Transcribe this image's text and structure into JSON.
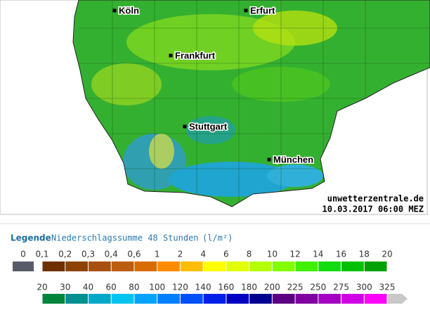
{
  "map": {
    "cities": [
      {
        "label": "Köln"
      },
      {
        "label": "Erfurt"
      },
      {
        "label": "Frankfurt"
      },
      {
        "label": "Stuttgart"
      },
      {
        "label": "München"
      }
    ],
    "source": "unwetterzentrale.de",
    "timestamp": "10.03.2017 06:00 MEZ"
  },
  "legend": {
    "title": "Legende",
    "subtitle": "Niederschlagssumme 48 Stunden",
    "unit": "(l/m²)",
    "zero": {
      "label": "0",
      "color": "#585c6a"
    },
    "rows": [
      {
        "labels": [
          "0,1",
          "0,2",
          "0,3",
          "0,4",
          "0,6",
          "1",
          "2",
          "4",
          "6",
          "8",
          "10",
          "12",
          "14",
          "16",
          "18",
          "20"
        ],
        "colors": [
          "#6e3000",
          "#8c4200",
          "#a85010",
          "#bc5c10",
          "#d86c00",
          "#ff8c00",
          "#ffbe00",
          "#ffff00",
          "#e0ff00",
          "#b4ff00",
          "#84ff00",
          "#40f000",
          "#10dc10",
          "#00c000",
          "#00a000"
        ]
      },
      {
        "labels": [
          "20",
          "30",
          "40",
          "60",
          "80",
          "100",
          "120",
          "140",
          "160",
          "180",
          "200",
          "225",
          "250",
          "275",
          "300",
          "325"
        ],
        "colors": [
          "#00843c",
          "#009090",
          "#00a8c8",
          "#00c4f0",
          "#00a4ff",
          "#0080ff",
          "#0050ff",
          "#0020e8",
          "#0000c4",
          "#000090",
          "#5c0080",
          "#8000a0",
          "#a400c4",
          "#d000e4",
          "#ff00ff"
        ],
        "overflow_color": "#c8c8c8"
      }
    ]
  }
}
